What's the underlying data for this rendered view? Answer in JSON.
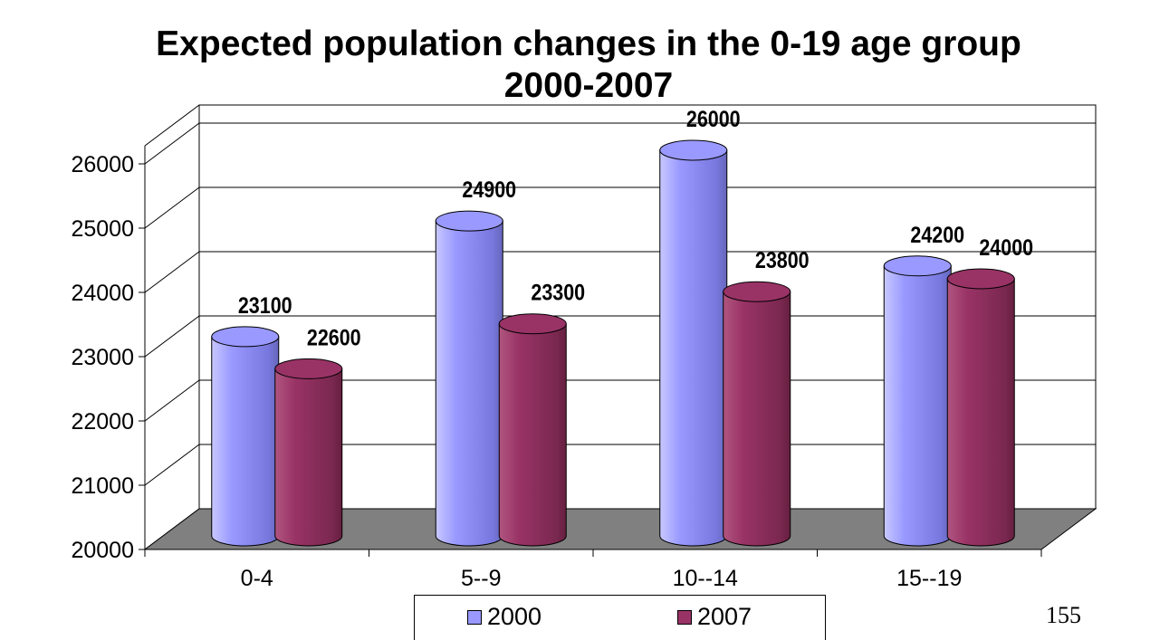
{
  "chart_data": {
    "type": "bar",
    "title": "Expected population changes in the 0-19 age group 2000-2007",
    "categories": [
      "0-4",
      "5--9",
      "10--14",
      "15--19"
    ],
    "series": [
      {
        "name": "2000",
        "values": [
          23100,
          24900,
          26000,
          24200
        ],
        "color": "#9999ff"
      },
      {
        "name": "2007",
        "values": [
          22600,
          23300,
          23800,
          24000
        ],
        "color": "#993366"
      }
    ],
    "y_ticks": [
      "20000",
      "21000",
      "22000",
      "23000",
      "24000",
      "25000",
      "26000"
    ],
    "ylim": [
      20000,
      26000
    ],
    "grid": true,
    "legend": "bottom",
    "floor_color": "#808080"
  },
  "page_number": "155"
}
